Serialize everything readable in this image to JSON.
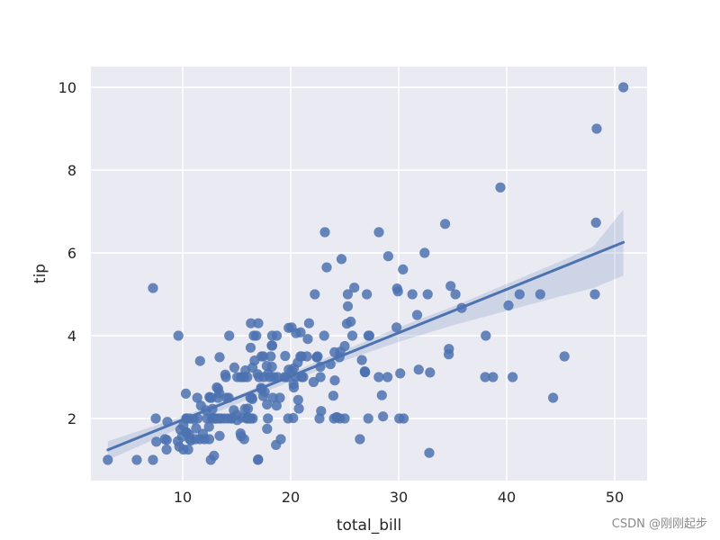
{
  "chart_data": {
    "type": "scatter",
    "xlabel": "total_bill",
    "ylabel": "tip",
    "xlim": [
      1.5,
      53
    ],
    "ylim": [
      0.5,
      10.5
    ],
    "xticks": [
      10,
      20,
      30,
      40,
      50
    ],
    "yticks": [
      2,
      4,
      6,
      8,
      10
    ],
    "grid": true,
    "background": "#eaeaf2",
    "point_color": "#4c72b0",
    "line_color": "#4c72b0",
    "ci_color": "#4c72b0",
    "regression": {
      "slope": 0.105,
      "intercept": 0.92,
      "x_range": [
        3.07,
        50.81
      ]
    },
    "confidence_band": {
      "x": [
        3.07,
        10,
        15,
        20,
        25,
        30,
        35,
        40,
        45,
        48,
        50.81
      ],
      "lower": [
        1.0,
        1.8,
        2.35,
        2.9,
        3.4,
        3.85,
        4.25,
        4.6,
        4.95,
        5.15,
        5.45
      ],
      "upper": [
        1.45,
        2.05,
        2.55,
        3.1,
        3.65,
        4.2,
        4.7,
        5.25,
        5.8,
        6.15,
        7.05
      ]
    },
    "points": [
      [
        3.07,
        1.0
      ],
      [
        5.75,
        1.0
      ],
      [
        7.25,
        1.0
      ],
      [
        7.25,
        5.15
      ],
      [
        7.51,
        2.0
      ],
      [
        7.56,
        1.44
      ],
      [
        8.35,
        1.5
      ],
      [
        8.51,
        1.25
      ],
      [
        8.52,
        1.48
      ],
      [
        8.58,
        1.92
      ],
      [
        9.55,
        1.45
      ],
      [
        9.6,
        4.0
      ],
      [
        9.68,
        1.32
      ],
      [
        9.78,
        1.73
      ],
      [
        9.94,
        1.56
      ],
      [
        10.07,
        1.25
      ],
      [
        10.07,
        1.83
      ],
      [
        10.29,
        2.6
      ],
      [
        10.33,
        1.67
      ],
      [
        10.33,
        2.0
      ],
      [
        10.34,
        1.66
      ],
      [
        10.34,
        2.0
      ],
      [
        10.51,
        1.25
      ],
      [
        10.59,
        1.61
      ],
      [
        10.63,
        2.0
      ],
      [
        10.65,
        1.5
      ],
      [
        11.02,
        1.98
      ],
      [
        11.17,
        1.5
      ],
      [
        11.24,
        1.76
      ],
      [
        11.35,
        2.5
      ],
      [
        11.38,
        2.0
      ],
      [
        11.59,
        1.5
      ],
      [
        11.61,
        3.39
      ],
      [
        11.69,
        2.31
      ],
      [
        11.87,
        1.63
      ],
      [
        12.03,
        1.5
      ],
      [
        12.16,
        2.2
      ],
      [
        12.26,
        2.0
      ],
      [
        12.43,
        1.8
      ],
      [
        12.46,
        1.5
      ],
      [
        12.48,
        2.52
      ],
      [
        12.54,
        2.5
      ],
      [
        12.6,
        1.0
      ],
      [
        12.66,
        2.5
      ],
      [
        12.69,
        2.0
      ],
      [
        12.74,
        2.01
      ],
      [
        12.76,
        2.23
      ],
      [
        12.9,
        1.1
      ],
      [
        13.0,
        2.0
      ],
      [
        13.03,
        2.0
      ],
      [
        13.13,
        2.0
      ],
      [
        13.16,
        2.75
      ],
      [
        13.27,
        2.5
      ],
      [
        13.28,
        2.72
      ],
      [
        13.37,
        2.0
      ],
      [
        13.39,
        2.61
      ],
      [
        13.42,
        3.48
      ],
      [
        13.42,
        1.58
      ],
      [
        13.51,
        2.0
      ],
      [
        13.81,
        2.0
      ],
      [
        13.94,
        3.06
      ],
      [
        14.0,
        3.0
      ],
      [
        14.07,
        2.5
      ],
      [
        14.15,
        2.0
      ],
      [
        14.26,
        2.5
      ],
      [
        14.31,
        4.0
      ],
      [
        14.48,
        2.0
      ],
      [
        14.52,
        2.0
      ],
      [
        14.73,
        2.2
      ],
      [
        14.78,
        3.23
      ],
      [
        15.01,
        2.09
      ],
      [
        15.04,
        1.96
      ],
      [
        15.06,
        3.0
      ],
      [
        15.36,
        1.64
      ],
      [
        15.38,
        3.0
      ],
      [
        15.42,
        1.57
      ],
      [
        15.48,
        2.02
      ],
      [
        15.53,
        3.0
      ],
      [
        15.69,
        1.5
      ],
      [
        15.69,
        3.0
      ],
      [
        15.77,
        2.23
      ],
      [
        15.81,
        3.16
      ],
      [
        15.95,
        2.0
      ],
      [
        15.98,
        3.0
      ],
      [
        16.0,
        2.0
      ],
      [
        16.04,
        2.24
      ],
      [
        16.21,
        2.0
      ],
      [
        16.27,
        2.5
      ],
      [
        16.29,
        3.71
      ],
      [
        16.31,
        2.0
      ],
      [
        16.32,
        4.3
      ],
      [
        16.4,
        2.5
      ],
      [
        16.45,
        2.47
      ],
      [
        16.47,
        3.23
      ],
      [
        16.49,
        2.0
      ],
      [
        16.58,
        4.0
      ],
      [
        16.66,
        3.4
      ],
      [
        16.82,
        4.0
      ],
      [
        16.93,
        3.07
      ],
      [
        16.97,
        1.0
      ],
      [
        16.99,
        1.01
      ],
      [
        17.07,
        3.0
      ],
      [
        17.26,
        2.74
      ],
      [
        17.29,
        2.71
      ],
      [
        17.31,
        3.5
      ],
      [
        17.46,
        2.54
      ],
      [
        17.47,
        3.5
      ],
      [
        17.51,
        3.0
      ],
      [
        17.59,
        2.64
      ],
      [
        17.78,
        3.27
      ],
      [
        17.81,
        2.34
      ],
      [
        17.82,
        1.75
      ],
      [
        17.89,
        2.0
      ],
      [
        17.92,
        3.08
      ],
      [
        18.04,
        3.0
      ],
      [
        18.15,
        3.5
      ],
      [
        18.24,
        3.76
      ],
      [
        18.26,
        3.25
      ],
      [
        18.28,
        4.0
      ],
      [
        18.29,
        3.76
      ],
      [
        18.35,
        2.5
      ],
      [
        18.43,
        3.0
      ],
      [
        18.64,
        1.36
      ],
      [
        18.69,
        2.31
      ],
      [
        18.71,
        4.0
      ],
      [
        18.78,
        3.0
      ],
      [
        19.08,
        1.5
      ],
      [
        19.44,
        3.0
      ],
      [
        19.49,
        3.51
      ],
      [
        19.65,
        3.0
      ],
      [
        19.77,
        2.0
      ],
      [
        19.81,
        4.19
      ],
      [
        19.82,
        3.18
      ],
      [
        20.08,
        3.15
      ],
      [
        20.23,
        2.01
      ],
      [
        20.27,
        2.83
      ],
      [
        20.29,
        2.75
      ],
      [
        20.29,
        3.21
      ],
      [
        20.45,
        3.0
      ],
      [
        20.49,
        4.06
      ],
      [
        20.65,
        3.35
      ],
      [
        20.69,
        2.45
      ],
      [
        20.76,
        2.24
      ],
      [
        20.9,
        3.5
      ],
      [
        20.92,
        4.08
      ],
      [
        21.01,
        3.0
      ],
      [
        21.01,
        3.5
      ],
      [
        21.16,
        3.0
      ],
      [
        21.5,
        3.5
      ],
      [
        21.58,
        3.92
      ],
      [
        21.7,
        4.3
      ],
      [
        22.12,
        2.88
      ],
      [
        22.23,
        5.0
      ],
      [
        22.42,
        3.48
      ],
      [
        22.49,
        3.5
      ],
      [
        22.67,
        2.0
      ],
      [
        22.75,
        3.25
      ],
      [
        22.76,
        3.0
      ],
      [
        22.82,
        2.18
      ],
      [
        23.1,
        4.0
      ],
      [
        23.17,
        6.5
      ],
      [
        23.33,
        5.65
      ],
      [
        23.68,
        3.31
      ],
      [
        23.95,
        2.55
      ],
      [
        24.01,
        2.0
      ],
      [
        24.06,
        3.6
      ],
      [
        24.08,
        2.92
      ],
      [
        24.27,
        2.03
      ],
      [
        24.52,
        3.48
      ],
      [
        24.55,
        2.0
      ],
      [
        24.59,
        3.61
      ],
      [
        25.0,
        3.75
      ],
      [
        25.21,
        4.29
      ],
      [
        25.28,
        5.0
      ],
      [
        25.29,
        4.71
      ],
      [
        25.56,
        4.34
      ],
      [
        25.71,
        4.0
      ],
      [
        25.89,
        5.16
      ],
      [
        26.41,
        1.5
      ],
      [
        26.59,
        3.41
      ],
      [
        26.86,
        3.14
      ],
      [
        26.88,
        3.12
      ],
      [
        27.05,
        5.0
      ],
      [
        27.18,
        2.0
      ],
      [
        27.2,
        4.0
      ],
      [
        27.28,
        4.0
      ],
      [
        28.15,
        3.0
      ],
      [
        28.17,
        6.5
      ],
      [
        28.44,
        2.56
      ],
      [
        28.55,
        2.05
      ],
      [
        28.97,
        3.0
      ],
      [
        29.03,
        5.92
      ],
      [
        29.8,
        4.2
      ],
      [
        29.85,
        5.14
      ],
      [
        29.93,
        5.07
      ],
      [
        30.06,
        2.0
      ],
      [
        30.14,
        3.09
      ],
      [
        30.4,
        5.6
      ],
      [
        31.27,
        5.0
      ],
      [
        31.71,
        4.5
      ],
      [
        31.85,
        3.18
      ],
      [
        32.4,
        6.0
      ],
      [
        32.68,
        5.0
      ],
      [
        32.83,
        1.17
      ],
      [
        32.9,
        3.11
      ],
      [
        34.3,
        6.7
      ],
      [
        34.63,
        3.55
      ],
      [
        34.65,
        3.68
      ],
      [
        34.81,
        5.2
      ],
      [
        35.26,
        5.0
      ],
      [
        35.83,
        4.67
      ],
      [
        38.01,
        3.0
      ],
      [
        38.07,
        4.0
      ],
      [
        38.73,
        3.0
      ],
      [
        39.42,
        7.58
      ],
      [
        40.17,
        4.73
      ],
      [
        40.55,
        3.0
      ],
      [
        41.19,
        5.0
      ],
      [
        43.11,
        5.0
      ],
      [
        44.3,
        2.5
      ],
      [
        45.35,
        3.5
      ],
      [
        48.17,
        5.0
      ],
      [
        48.27,
        6.73
      ],
      [
        48.33,
        9.0
      ],
      [
        50.81,
        10.0
      ],
      [
        24.71,
        5.85
      ],
      [
        30.46,
        2.0
      ],
      [
        26.88,
        3.12
      ],
      [
        22.42,
        3.48
      ],
      [
        10.77,
        1.47
      ],
      [
        25.0,
        2.0
      ],
      [
        13.0,
        2.0
      ],
      [
        15.98,
        2.03
      ],
      [
        24.27,
        2.03
      ],
      [
        20.08,
        4.2
      ],
      [
        19.0,
        2.5
      ],
      [
        17.0,
        4.3
      ]
    ]
  },
  "watermark": "CSDN @刚刚起步"
}
